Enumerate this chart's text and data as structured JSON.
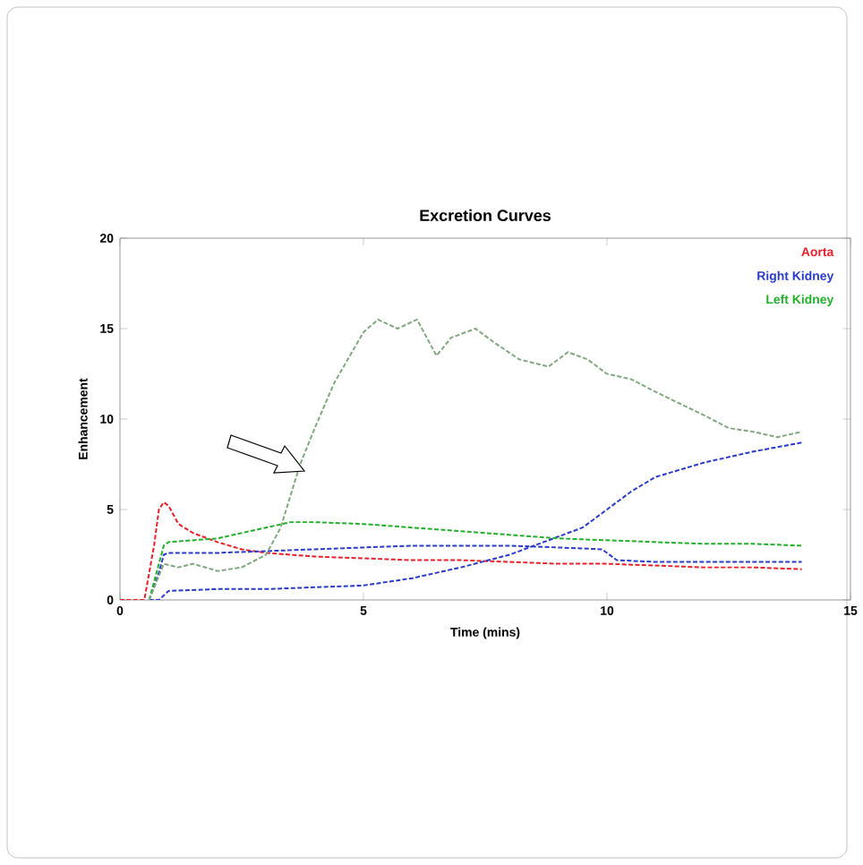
{
  "chart_data": {
    "type": "line",
    "title": "Excretion Curves",
    "xlabel": "Time (mins)",
    "ylabel": "Enhancement",
    "xlim": [
      0,
      15
    ],
    "xticks": [
      0,
      5,
      10,
      15
    ],
    "ylim": [
      0,
      20
    ],
    "yticks": [
      0,
      5,
      10,
      15,
      20
    ],
    "legend": "top right",
    "line_style": "dashed",
    "grid": false,
    "series": [
      {
        "name": "Aorta",
        "color": "#e8202a",
        "x": [
          0,
          0.5,
          0.7,
          0.8,
          0.9,
          1.0,
          1.2,
          1.5,
          2,
          2.5,
          3,
          4,
          5,
          6,
          7,
          8,
          9,
          10,
          11,
          12,
          13,
          14
        ],
        "values": [
          0,
          0,
          3,
          5,
          5.4,
          5.2,
          4.2,
          3.7,
          3.2,
          2.8,
          2.6,
          2.4,
          2.3,
          2.2,
          2.2,
          2.1,
          2.0,
          2.0,
          1.9,
          1.8,
          1.8,
          1.7
        ]
      },
      {
        "name": "Right Kidney",
        "color": "#2a3bc8",
        "x": [
          0.6,
          0.8,
          0.9,
          1,
          2,
          3,
          4,
          5,
          6,
          7,
          8,
          9,
          9.9,
          10.2,
          11,
          12,
          13,
          14
        ],
        "values": [
          0,
          1.5,
          2.5,
          2.6,
          2.6,
          2.7,
          2.8,
          2.9,
          3.0,
          3.0,
          3.0,
          2.9,
          2.8,
          2.2,
          2.1,
          2.1,
          2.1,
          2.1
        ]
      },
      {
        "color": "#2a3bc8",
        "x": [
          0.6,
          0.8,
          1,
          2,
          3,
          4,
          5,
          6,
          7,
          8,
          9,
          9.5,
          10,
          10.5,
          11,
          12,
          13,
          14
        ],
        "values": [
          0,
          0,
          0.5,
          0.6,
          0.6,
          0.7,
          0.8,
          1.2,
          1.8,
          2.5,
          3.5,
          4.0,
          5.0,
          6.0,
          6.8,
          7.6,
          8.2,
          8.7
        ]
      },
      {
        "name": "Left Kidney",
        "color": "#22b02a",
        "x": [
          0.6,
          0.8,
          0.9,
          1,
          2,
          3,
          3.5,
          4,
          5,
          6,
          7,
          8,
          9,
          10,
          11,
          12,
          13,
          14
        ],
        "values": [
          0,
          2,
          3.0,
          3.2,
          3.4,
          4.0,
          4.3,
          4.3,
          4.2,
          4.0,
          3.8,
          3.6,
          3.4,
          3.3,
          3.2,
          3.1,
          3.1,
          3.0
        ]
      },
      {
        "color": "#7fa87f",
        "x": [
          0.6,
          0.9,
          1.2,
          1.5,
          2,
          2.5,
          3,
          3.3,
          3.7,
          4,
          4.4,
          5,
          5.3,
          5.7,
          6.1,
          6.5,
          6.8,
          7.3,
          7.7,
          8.2,
          8.8,
          9.2,
          9.6,
          10,
          10.5,
          11,
          12,
          12.5,
          13,
          13.5,
          14
        ],
        "values": [
          0,
          2.0,
          1.8,
          2.0,
          1.6,
          1.8,
          2.5,
          4.0,
          7.5,
          9.5,
          12,
          14.8,
          15.5,
          15.0,
          15.5,
          13.5,
          14.5,
          15.0,
          14.2,
          13.3,
          12.9,
          13.7,
          13.3,
          12.5,
          12.2,
          11.5,
          10.2,
          9.5,
          9.3,
          9.0,
          9.3
        ]
      }
    ]
  }
}
